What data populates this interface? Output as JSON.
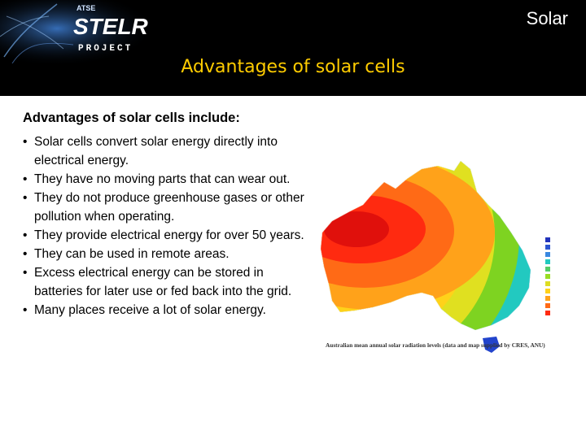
{
  "header": {
    "logo": {
      "small_text": "ATSE",
      "main_text": "STELR",
      "sub_text": "PROJECT"
    },
    "topic": "Solar",
    "title": "Advantages of solar cells",
    "bg_color": "#000000",
    "title_color": "#ffcc00"
  },
  "content": {
    "intro": "Advantages of solar cells include:",
    "bullet_symbol": "•",
    "bullets": [
      "Solar cells convert solar energy directly into electrical energy.",
      "They have no moving parts that can wear out.",
      "They do not produce greenhouse gases or other pollution when operating.",
      "They provide electrical energy for over 50 years.",
      "They can be used in remote areas.",
      "Excess electrical energy can be stored in batteries for later use or fed back into the grid.",
      "Many places receive a lot of solar energy."
    ]
  },
  "map": {
    "caption": "Australian mean annual solar radiation levels (data and map supplied by CRES, ANU)",
    "zone_colors": [
      "#2244cc",
      "#1f88e0",
      "#22c9c0",
      "#7ed321",
      "#e0e020",
      "#ffd21a",
      "#ffa21a",
      "#ff6a16",
      "#ff2a10",
      "#e0100c"
    ],
    "legend_colors": [
      "#2233bb",
      "#2c55d0",
      "#3a88e0",
      "#22c9c0",
      "#55cc66",
      "#99dd22",
      "#dddd22",
      "#ffd21a",
      "#ffa21a",
      "#ff6a16",
      "#ff2a10"
    ]
  }
}
